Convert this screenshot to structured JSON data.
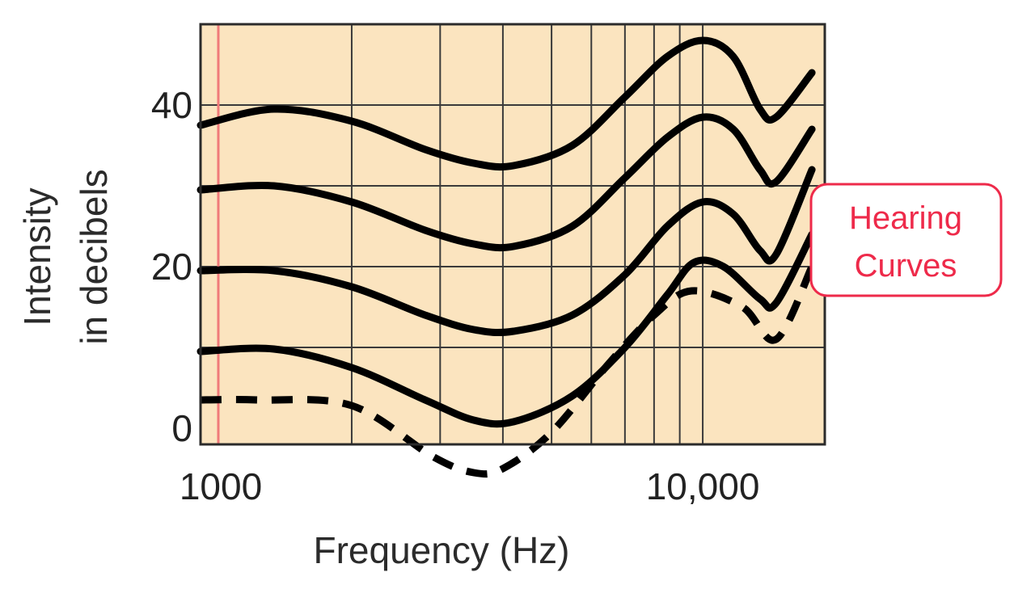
{
  "chart_data": {
    "type": "line",
    "xlabel": "Frequency (Hz)",
    "ylabel_lines": [
      "Intensity",
      "in decibels"
    ],
    "x_scale": "log",
    "xlim": [
      1000,
      17500
    ],
    "ylim": [
      -2,
      50
    ],
    "x_tick_labels": [
      {
        "value": 1000,
        "label": "1000",
        "color": "#ee2a4a"
      },
      {
        "value": 10000,
        "label": "10,000",
        "color": "#222222"
      }
    ],
    "y_tick_labels": [
      {
        "value": 0,
        "label": "0"
      },
      {
        "value": 20,
        "label": "20"
      },
      {
        "value": 40,
        "label": "40"
      }
    ],
    "x_gridlines": [
      1000,
      2000,
      3000,
      4000,
      5000,
      6000,
      7000,
      8000,
      9000,
      10000,
      20000
    ],
    "y_gridlines": [
      10,
      20,
      30,
      40
    ],
    "highlight_x": 1000,
    "grid": true,
    "annotation": {
      "lines": [
        "Hearing",
        "Curves"
      ],
      "position": "right"
    },
    "series": [
      {
        "style": "dashed",
        "x": [
          1000,
          1300,
          2000,
          2900,
          3500,
          4000,
          5000,
          6500,
          8000,
          9500,
          12000,
          14000,
          16500
        ],
        "y": [
          3.5,
          3.5,
          2.8,
          -3.5,
          -5.5,
          -5,
          -0.5,
          8,
          14,
          17,
          15,
          11,
          20
        ]
      },
      {
        "style": "solid",
        "x": [
          1000,
          1400,
          2000,
          2800,
          3500,
          4200,
          5500,
          7000,
          8500,
          9600,
          11000,
          13000,
          14000,
          16500
        ],
        "y": [
          9.5,
          9.8,
          7.5,
          3.5,
          1,
          0.8,
          4,
          10,
          16.5,
          20.5,
          20,
          16,
          15.5,
          24
        ]
      },
      {
        "style": "solid",
        "x": [
          1000,
          1400,
          2000,
          2800,
          3500,
          4200,
          5500,
          7000,
          8500,
          10000,
          11500,
          13000,
          14000,
          16500
        ],
        "y": [
          19.5,
          19.5,
          17.5,
          14,
          12.2,
          12,
          14,
          19,
          25,
          28,
          26.5,
          22,
          21.5,
          32
        ]
      },
      {
        "style": "solid",
        "x": [
          1000,
          1400,
          2000,
          2800,
          3500,
          4200,
          5500,
          7000,
          8500,
          10000,
          11500,
          13000,
          14000,
          16500
        ],
        "y": [
          29.5,
          30,
          28,
          24.5,
          22.8,
          22.5,
          25,
          31,
          36,
          38.5,
          37,
          32,
          30.5,
          37
        ]
      },
      {
        "style": "solid",
        "x": [
          1000,
          1400,
          2000,
          2800,
          3500,
          4200,
          5500,
          7000,
          8500,
          10000,
          11500,
          13000,
          14000,
          16500
        ],
        "y": [
          37.5,
          39.5,
          38,
          34.5,
          32.8,
          32.5,
          35,
          41,
          46,
          48,
          46,
          39.5,
          38.5,
          44
        ]
      }
    ]
  }
}
